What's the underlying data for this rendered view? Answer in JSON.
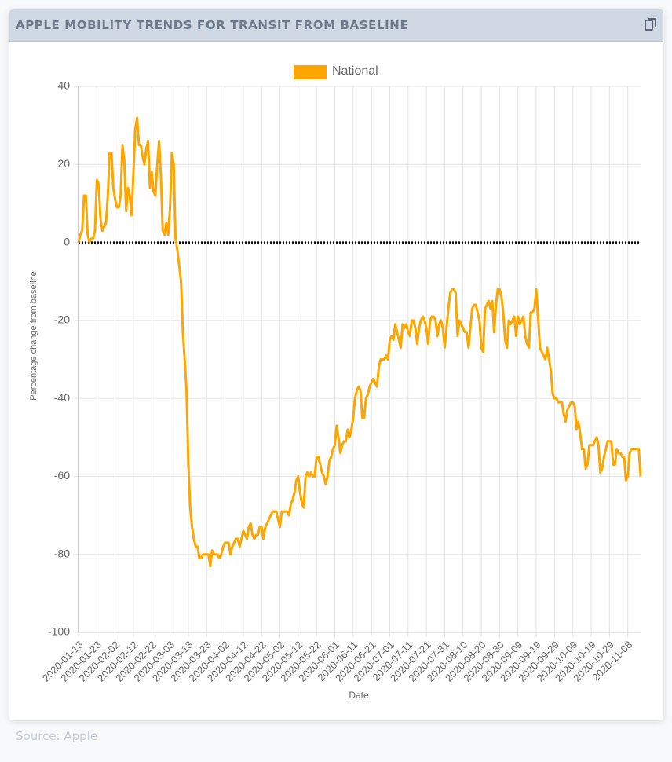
{
  "header": {
    "title": "APPLE MOBILITY TRENDS FOR TRANSIT FROM BASELINE"
  },
  "footer": {
    "source": "Source: Apple"
  },
  "chart_data": {
    "type": "line",
    "xlabel": "Date",
    "ylabel": "Percentage change from baseline",
    "ylim": [
      -100,
      40
    ],
    "yticks": [
      -100,
      -80,
      -60,
      -40,
      -20,
      0,
      20,
      40
    ],
    "grid": true,
    "legend": "top",
    "reference_line": 0,
    "categories": [
      "2020-01-13",
      null,
      null,
      null,
      null,
      null,
      null,
      null,
      null,
      null,
      "2020-01-23",
      null,
      null,
      null,
      null,
      null,
      null,
      null,
      null,
      null,
      "2020-02-02",
      null,
      null,
      null,
      null,
      null,
      null,
      null,
      null,
      null,
      "2020-02-12",
      null,
      null,
      null,
      null,
      null,
      null,
      null,
      null,
      null,
      "2020-02-22",
      null,
      null,
      null,
      null,
      null,
      null,
      null,
      null,
      null,
      "2020-03-03",
      null,
      null,
      null,
      null,
      null,
      null,
      null,
      null,
      null,
      "2020-03-13",
      null,
      null,
      null,
      null,
      null,
      null,
      null,
      null,
      null,
      "2020-03-23",
      null,
      null,
      null,
      null,
      null,
      null,
      null,
      null,
      null,
      "2020-04-02",
      null,
      null,
      null,
      null,
      null,
      null,
      null,
      null,
      null,
      "2020-04-12",
      null,
      null,
      null,
      null,
      null,
      null,
      null,
      null,
      null,
      "2020-04-22",
      null,
      null,
      null,
      null,
      null,
      null,
      null,
      null,
      null,
      "2020-05-02",
      null,
      null,
      null,
      null,
      null,
      null,
      null,
      null,
      null,
      "2020-05-12",
      null,
      null,
      null,
      null,
      null,
      null,
      null,
      null,
      null,
      "2020-05-22",
      null,
      null,
      null,
      null,
      null,
      null,
      null,
      null,
      null,
      "2020-06-01",
      null,
      null,
      null,
      null,
      null,
      null,
      null,
      null,
      null,
      "2020-06-11",
      null,
      null,
      null,
      null,
      null,
      null,
      null,
      null,
      null,
      "2020-06-21",
      null,
      null,
      null,
      null,
      null,
      null,
      null,
      null,
      null,
      "2020-07-01",
      null,
      null,
      null,
      null,
      null,
      null,
      null,
      null,
      null,
      "2020-07-11",
      null,
      null,
      null,
      null,
      null,
      null,
      null,
      null,
      null,
      "2020-07-21",
      null,
      null,
      null,
      null,
      null,
      null,
      null,
      null,
      null,
      "2020-07-31",
      null,
      null,
      null,
      null,
      null,
      null,
      null,
      null,
      null,
      "2020-08-10",
      null,
      null,
      null,
      null,
      null,
      null,
      null,
      null,
      null,
      "2020-08-20",
      null,
      null,
      null,
      null,
      null,
      null,
      null,
      null,
      null,
      "2020-08-30",
      null,
      null,
      null,
      null,
      null,
      null,
      null,
      null,
      null,
      "2020-09-09",
      null,
      null,
      null,
      null,
      null,
      null,
      null,
      null,
      null,
      "2020-09-19",
      null,
      null,
      null,
      null,
      null,
      null,
      null,
      null,
      null,
      "2020-09-29",
      null,
      null,
      null,
      null,
      null,
      null,
      null,
      null,
      null,
      "2020-10-09",
      null,
      null,
      null,
      null,
      null,
      null,
      null,
      null,
      null,
      "2020-10-19",
      null,
      null,
      null,
      null,
      null,
      null,
      null,
      null,
      null,
      "2020-10-29",
      null,
      null,
      null,
      null,
      null,
      null,
      null,
      null,
      null,
      "2020-11-08",
      null,
      null,
      null,
      null,
      null,
      null,
      null
    ],
    "series": [
      {
        "name": "National",
        "color": "#ffa500",
        "values": [
          0,
          2,
          3,
          12,
          12,
          2,
          0,
          1,
          1,
          3,
          16,
          15,
          6,
          3,
          4,
          5,
          12,
          23,
          23,
          14,
          11,
          9,
          9,
          12,
          25,
          21,
          8,
          14,
          12,
          7,
          18,
          29,
          32,
          25,
          25,
          22,
          20,
          24,
          26,
          14,
          18,
          13,
          12,
          20,
          26,
          17,
          3,
          2,
          5,
          2,
          9,
          23,
          20,
          1,
          -2,
          -6,
          -10,
          -23,
          -30,
          -38,
          -57,
          -68,
          -73,
          -76,
          -78,
          -78,
          -81,
          -81,
          -80,
          -80,
          -80,
          -80,
          -83,
          -79,
          -80,
          -80,
          -80,
          -81,
          -80,
          -78,
          -77,
          -77,
          -77,
          -80,
          -78,
          -77,
          -76,
          -76,
          -78,
          -76,
          -74,
          -75,
          -76,
          -73,
          -72,
          -75,
          -76,
          -75,
          -75,
          -73,
          -73,
          -76,
          -73,
          -72,
          -71,
          -70,
          -69,
          -69,
          -69,
          -71,
          -73,
          -69,
          -69,
          -69,
          -69,
          -70,
          -67,
          -66,
          -64,
          -61,
          -60,
          -64,
          -67,
          -68,
          -60,
          -59,
          -60,
          -59,
          -60,
          -60,
          -55,
          -55,
          -57,
          -59,
          -60,
          -62,
          -60,
          -56,
          -55,
          -53,
          -52,
          -47,
          -50,
          -54,
          -52,
          -51,
          -51,
          -48,
          -50,
          -48,
          -45,
          -40,
          -38,
          -37,
          -38,
          -45,
          -45,
          -40,
          -39,
          -37,
          -36,
          -35,
          -36,
          -37,
          -32,
          -30,
          -30,
          -30,
          -29,
          -30,
          -25,
          -24,
          -25,
          -21,
          -23,
          -25,
          -27,
          -21,
          -22,
          -21,
          -23,
          -24,
          -20,
          -20,
          -22,
          -26,
          -22,
          -20,
          -19,
          -20,
          -22,
          -26,
          -20,
          -19,
          -19,
          -20,
          -24,
          -21,
          -20,
          -22,
          -27,
          -22,
          -17,
          -13,
          -12,
          -12,
          -13,
          -24,
          -20,
          -21,
          -22,
          -23,
          -23,
          -27,
          -22,
          -17,
          -16,
          -16,
          -18,
          -20,
          -27,
          -28,
          -17,
          -16,
          -15,
          -17,
          -15,
          -23,
          -16,
          -12,
          -12,
          -14,
          -18,
          -25,
          -27,
          -20,
          -21,
          -20,
          -19,
          -24,
          -19,
          -21,
          -20,
          -19,
          -24,
          -26,
          -27,
          -18,
          -18,
          -17,
          -12,
          -19,
          -27,
          -28,
          -29,
          -30,
          -27,
          -30,
          -33,
          -39,
          -40,
          -40,
          -41,
          -41,
          -41,
          -44,
          -46,
          -43,
          -42,
          -41,
          -41,
          -42,
          -48,
          -46,
          -49,
          -53,
          -53,
          -58,
          -57,
          -52,
          -52,
          -52,
          -51,
          -50,
          -52,
          -59,
          -58,
          -55,
          -53,
          -51,
          -51,
          -51,
          -57,
          -57,
          -53,
          -54,
          -54,
          -55,
          -55,
          -61,
          -60,
          -54,
          -53,
          -53,
          -53,
          -53,
          -53,
          -60
        ]
      }
    ]
  }
}
